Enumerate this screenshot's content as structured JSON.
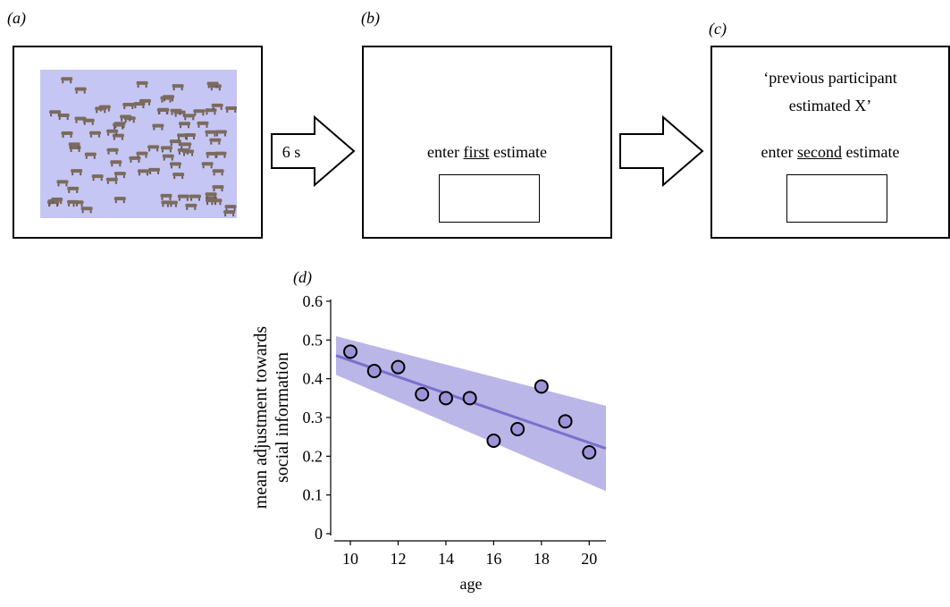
{
  "panels": {
    "a": {
      "label": "(a)"
    },
    "b": {
      "label": "(b)",
      "prompt_before": "enter ",
      "prompt_underlined": "first",
      "prompt_after": " estimate"
    },
    "c": {
      "label": "(c)",
      "quote_line1": "‘previous participant",
      "quote_line2": "estimated X’",
      "prompt_before": "enter ",
      "prompt_underlined": "second",
      "prompt_after": " estimate"
    },
    "d": {
      "label": "(d)"
    }
  },
  "arrows": {
    "first_label": "6 s"
  },
  "colors": {
    "stimulus_bg": "#c6c6f4",
    "band": "#b3aee6",
    "line": "#7a70cc",
    "point": "#9d94d8"
  },
  "chart_data": {
    "type": "scatter",
    "xlabel": "age",
    "ylabel_line1": "mean adjustment towards",
    "ylabel_line2": "social information",
    "xlim": [
      9.4,
      20.7
    ],
    "ylim": [
      0,
      0.6
    ],
    "x_ticks": [
      10,
      12,
      14,
      16,
      18,
      20
    ],
    "x_tick_labels": [
      "10",
      "12",
      "14",
      "16",
      "18",
      "20"
    ],
    "y_ticks": [
      0,
      0.1,
      0.2,
      0.3,
      0.4,
      0.5,
      0.6
    ],
    "y_tick_labels": [
      "0",
      "0.1",
      "0.2",
      "0.3",
      "0.4",
      "0.5",
      "0.6"
    ],
    "points": [
      {
        "x": 10,
        "y": 0.47
      },
      {
        "x": 11,
        "y": 0.42
      },
      {
        "x": 12,
        "y": 0.43
      },
      {
        "x": 13,
        "y": 0.36
      },
      {
        "x": 14,
        "y": 0.35
      },
      {
        "x": 15,
        "y": 0.35
      },
      {
        "x": 16,
        "y": 0.24
      },
      {
        "x": 17,
        "y": 0.27
      },
      {
        "x": 18,
        "y": 0.38
      },
      {
        "x": 19,
        "y": 0.29
      },
      {
        "x": 20,
        "y": 0.21
      }
    ],
    "fit_line": [
      {
        "x": 9.4,
        "y": 0.46
      },
      {
        "x": 20.7,
        "y": 0.22
      }
    ],
    "ci_band": {
      "upper": [
        {
          "x": 9.4,
          "y": 0.51
        },
        {
          "x": 20.7,
          "y": 0.33
        }
      ],
      "lower": [
        {
          "x": 9.4,
          "y": 0.41
        },
        {
          "x": 20.7,
          "y": 0.11
        }
      ]
    },
    "grid": false
  }
}
